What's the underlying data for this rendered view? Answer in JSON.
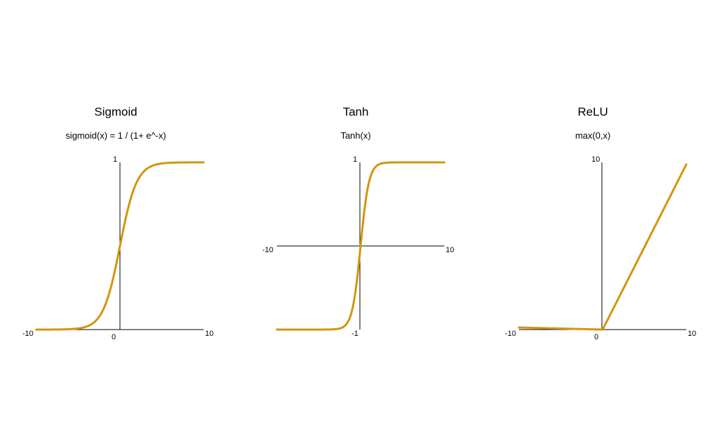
{
  "chart_data": [
    {
      "type": "line",
      "title": "Sigmoid",
      "subtitle": "sigmoid(x) = 1 / (1+ e^-x)",
      "function": "sigmoid",
      "xlim": [
        -10,
        10
      ],
      "ylim": [
        0,
        1
      ],
      "ticks": {
        "x_min": "-10",
        "x_max": "10",
        "origin": "0",
        "y_max": "1",
        "y_min": ""
      },
      "color": "#D4940C"
    },
    {
      "type": "line",
      "title": "Tanh",
      "subtitle": "Tanh(x)",
      "function": "tanh",
      "xlim": [
        -10,
        10
      ],
      "ylim": [
        -1,
        1
      ],
      "ticks": {
        "x_min": "-10",
        "x_max": "10",
        "origin": "",
        "y_max": "1",
        "y_min": "-1"
      },
      "color": "#D4940C"
    },
    {
      "type": "line",
      "title": "ReLU",
      "subtitle": "max(0,x)",
      "function": "relu",
      "xlim": [
        -10,
        10
      ],
      "ylim": [
        0,
        10
      ],
      "ticks": {
        "x_min": "-10",
        "x_max": "10",
        "origin": "0",
        "y_max": "10",
        "y_min": ""
      },
      "color": "#D4940C"
    }
  ]
}
